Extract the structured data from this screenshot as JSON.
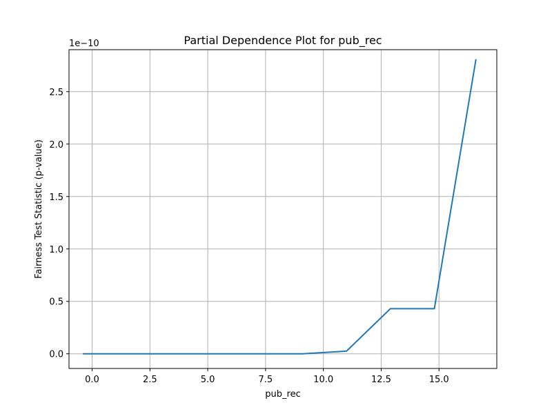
{
  "chart_data": {
    "type": "line",
    "title": "Partial Dependence Plot for pub_rec",
    "xlabel": "pub_rec",
    "ylabel": "Fairness Test Statistic (p-value)",
    "y_offset_label": "1e−10",
    "xlim": [
      -1.0,
      17.5
    ],
    "ylim": [
      -0.14,
      2.9
    ],
    "x_ticks": [
      0.0,
      2.5,
      5.0,
      7.5,
      10.0,
      12.5,
      15.0
    ],
    "x_tick_labels": [
      "0.0",
      "2.5",
      "5.0",
      "7.5",
      "10.0",
      "12.5",
      "15.0"
    ],
    "y_ticks": [
      0.0,
      0.5,
      1.0,
      1.5,
      2.0,
      2.5
    ],
    "y_tick_labels": [
      "0.0",
      "0.5",
      "1.0",
      "1.5",
      "2.0",
      "2.5"
    ],
    "grid": true,
    "series": [
      {
        "color": "#1f77b4",
        "x": [
          -0.4,
          1.5,
          3.4,
          5.3,
          7.2,
          9.1,
          11.0,
          12.9,
          14.8,
          16.6
        ],
        "y": [
          0.0,
          0.0,
          0.0,
          0.0,
          0.0,
          0.0,
          0.025,
          0.43,
          0.43,
          2.81
        ]
      }
    ]
  }
}
